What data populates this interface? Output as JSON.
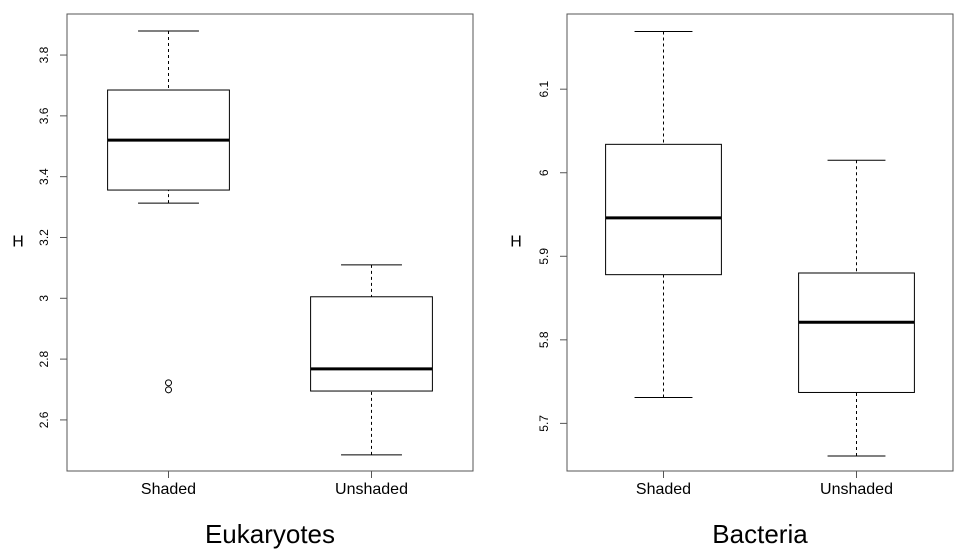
{
  "chart_data": [
    {
      "type": "box",
      "title": "Eukaryotes",
      "ylabel": "H",
      "color": "#000000",
      "categories": [
        "Shaded",
        "Unshaded"
      ],
      "boxes": [
        {
          "min": 3.313,
          "q1": 3.356,
          "median": 3.52,
          "q3": 3.685,
          "max": 3.879,
          "outliers": [
            2.722,
            2.699
          ]
        },
        {
          "min": 2.485,
          "q1": 2.695,
          "median": 2.768,
          "q3": 3.005,
          "max": 3.11,
          "outliers": []
        }
      ],
      "ylim": [
        2.432,
        3.935
      ],
      "yticks": [
        2.6,
        2.8,
        3.0,
        3.2,
        3.4,
        3.6,
        3.8
      ]
    },
    {
      "type": "box",
      "title": "Bacteria",
      "ylabel": "H",
      "color": "#000000",
      "categories": [
        "Shaded",
        "Unshaded"
      ],
      "boxes": [
        {
          "min": 5.731,
          "q1": 5.878,
          "median": 5.946,
          "q3": 6.034,
          "max": 6.169,
          "outliers": []
        },
        {
          "min": 5.661,
          "q1": 5.737,
          "median": 5.821,
          "q3": 5.88,
          "max": 6.015,
          "outliers": []
        }
      ],
      "ylim": [
        5.643,
        6.19
      ],
      "yticks": [
        5.7,
        5.8,
        5.9,
        6.0,
        6.1
      ]
    }
  ]
}
